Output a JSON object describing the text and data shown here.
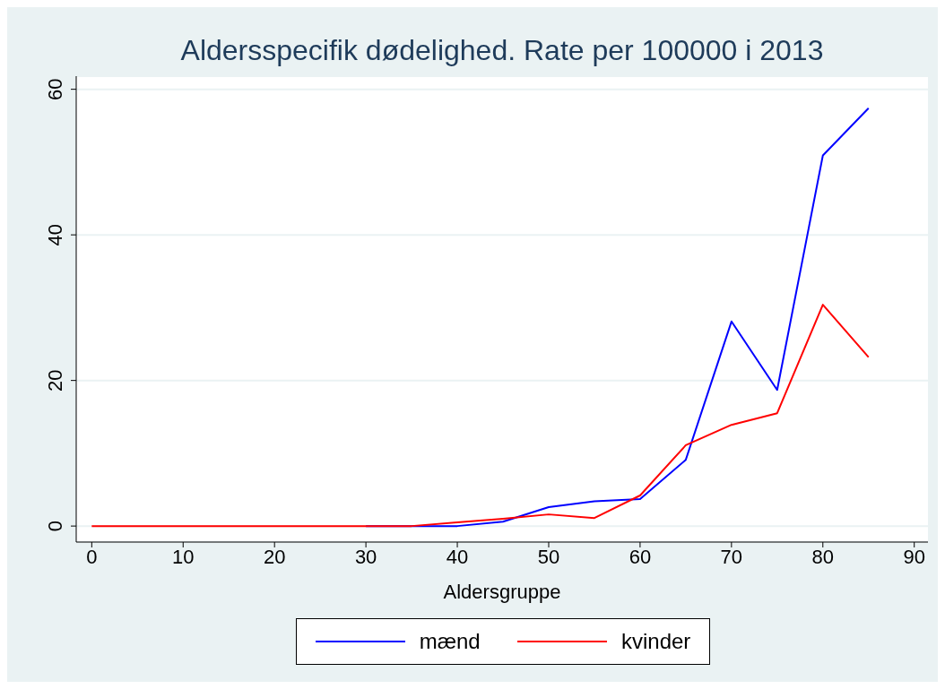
{
  "chart_data": {
    "type": "line",
    "title": "Aldersspecifik dødelighed. Rate per 100000 i 2013",
    "xlabel": "Aldersgruppe",
    "x": [
      0,
      5,
      10,
      15,
      20,
      25,
      30,
      35,
      40,
      45,
      50,
      55,
      60,
      65,
      70,
      75,
      80,
      85
    ],
    "series": [
      {
        "name": "mænd",
        "color": "#0000ff",
        "values": [
          null,
          null,
          null,
          null,
          null,
          null,
          0,
          0,
          0,
          0.6,
          2.6,
          3.4,
          3.7,
          9.1,
          28.1,
          18.7,
          50.9,
          57.4
        ]
      },
      {
        "name": "kvinder",
        "color": "#ff0000",
        "values": [
          0,
          0,
          0,
          0,
          0,
          0,
          0,
          0,
          0.5,
          1.0,
          1.6,
          1.1,
          4.2,
          11.1,
          13.9,
          15.5,
          30.4,
          23.2
        ]
      }
    ],
    "xlim": [
      -1.7,
      91.5
    ],
    "xticks": [
      0,
      10,
      20,
      30,
      40,
      50,
      60,
      70,
      80,
      90
    ],
    "ylim": [
      -2.2,
      61.8
    ],
    "yticks": [
      0,
      20,
      40,
      60
    ],
    "grid": "y",
    "legend": "bottom",
    "marker": "none",
    "line_style": "solid"
  }
}
